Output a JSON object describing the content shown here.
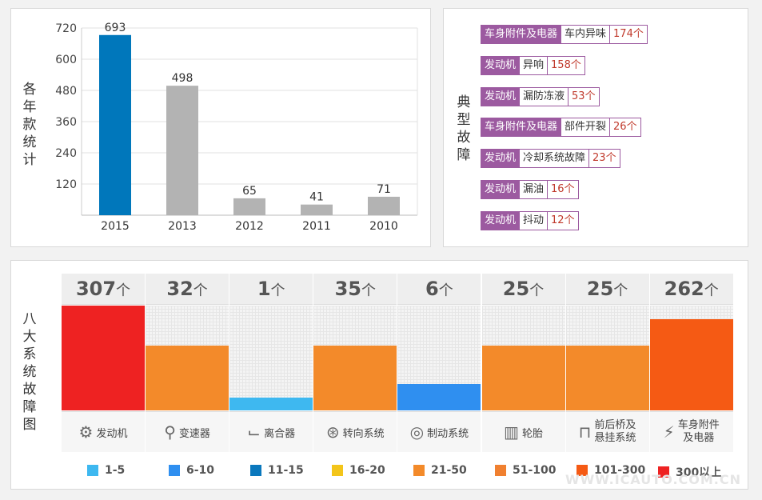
{
  "year_chart": {
    "label_chars": [
      "各",
      "年",
      "款",
      "统",
      "计"
    ],
    "chart_data": {
      "type": "bar",
      "categories": [
        "2015",
        "2013",
        "2012",
        "2011",
        "2010"
      ],
      "values": [
        693,
        498,
        65,
        41,
        71
      ],
      "ylim": [
        0,
        720
      ],
      "yticks": [
        120,
        240,
        360,
        480,
        600,
        720
      ],
      "colors": [
        "#0077bb",
        "#b3b3b3",
        "#b3b3b3",
        "#b3b3b3",
        "#b3b3b3"
      ]
    }
  },
  "typical_faults": {
    "label_chars": [
      "典",
      "型",
      "故",
      "障"
    ],
    "items": [
      {
        "category": "车身附件及电器",
        "name": "车内异味",
        "count": "174个"
      },
      {
        "category": "发动机",
        "name": "异响",
        "count": "158个"
      },
      {
        "category": "发动机",
        "name": "漏防冻液",
        "count": "53个"
      },
      {
        "category": "车身附件及电器",
        "name": "部件开裂",
        "count": "26个"
      },
      {
        "category": "发动机",
        "name": "冷却系统故障",
        "count": "23个"
      },
      {
        "category": "发动机",
        "name": "漏油",
        "count": "16个"
      },
      {
        "category": "发动机",
        "name": "抖动",
        "count": "12个"
      }
    ]
  },
  "systems": {
    "label_chars": [
      "八",
      "大",
      "系",
      "统",
      "故",
      "障",
      "图"
    ],
    "unit": "个",
    "items": [
      {
        "count": "307",
        "label": "发动机",
        "level": 1.0,
        "color": "#ee2222",
        "icon": "engine-icon",
        "glyph": "⚙"
      },
      {
        "count": "32",
        "label": "变速器",
        "level": 0.62,
        "color": "#f38a2a",
        "icon": "gear-shift-icon",
        "glyph": "⚲"
      },
      {
        "count": "1",
        "label": "离合器",
        "level": 0.12,
        "color": "#3eb8f0",
        "icon": "clutch-pedal-icon",
        "glyph": "⌙"
      },
      {
        "count": "35",
        "label": "转向系统",
        "level": 0.62,
        "color": "#f38a2a",
        "icon": "steering-wheel-icon",
        "glyph": "⊛"
      },
      {
        "count": "6",
        "label": "制动系统",
        "level": 0.25,
        "color": "#2f8ff0",
        "icon": "brake-disc-icon",
        "glyph": "◎"
      },
      {
        "count": "25",
        "label": "轮胎",
        "level": 0.62,
        "color": "#f38a2a",
        "icon": "tire-icon",
        "glyph": "▥"
      },
      {
        "count": "25",
        "label_line1": "前后桥及",
        "label_line2": "悬挂系统",
        "level": 0.62,
        "color": "#f38a2a",
        "icon": "suspension-icon",
        "glyph": "⊓"
      },
      {
        "count": "262",
        "label_line1": "车身附件",
        "label_line2": "及电器",
        "level": 0.87,
        "color": "#f55a14",
        "icon": "car-battery-icon",
        "glyph": "⚡"
      }
    ],
    "legend": [
      {
        "label": "1-5",
        "color": "#3eb8f0"
      },
      {
        "label": "6-10",
        "color": "#2f8ff0"
      },
      {
        "label": "11-15",
        "color": "#0a78bd"
      },
      {
        "label": "16-20",
        "color": "#f3c51a"
      },
      {
        "label": "21-50",
        "color": "#f38a2a"
      },
      {
        "label": "51-100",
        "color": "#f08030"
      },
      {
        "label": "101-300",
        "color": "#f55a14"
      },
      {
        "label": "300以上",
        "color": "#ee2222"
      }
    ]
  },
  "watermark": "WWW.ICAUTO.COM.CN"
}
